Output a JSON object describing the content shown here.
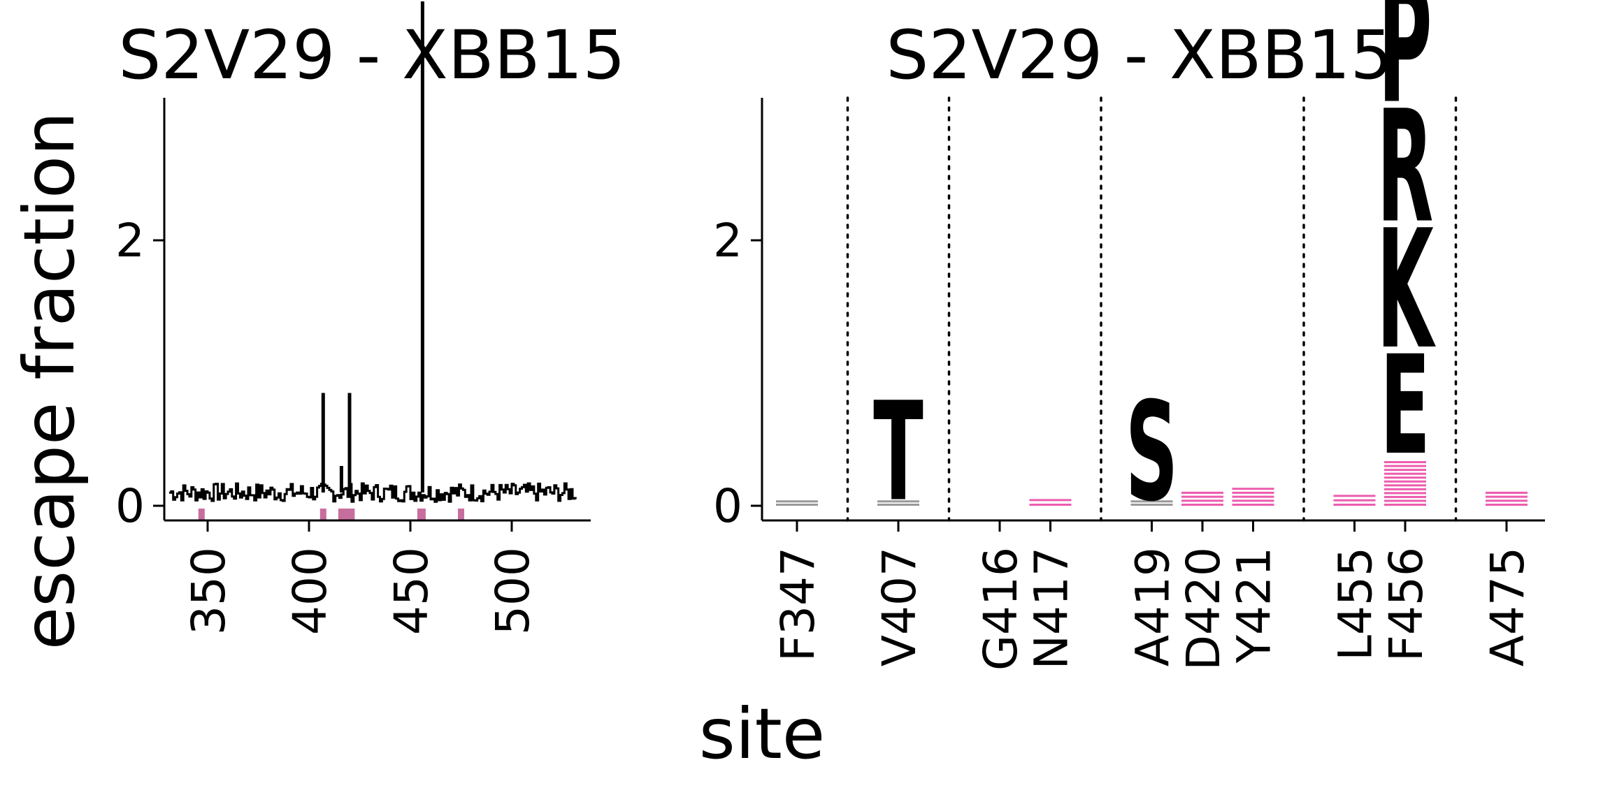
{
  "figure": {
    "ylabel": "escape fraction",
    "xlabel": "site"
  },
  "colors": {
    "axis": "#000000",
    "line": "#000000",
    "site_marker": "#c86e9e",
    "highlight": "#e8339a",
    "gray_letter": "#808080"
  },
  "chart_data": [
    {
      "type": "line",
      "title": "S2V29 - XBB15",
      "ylabel": "escape fraction",
      "xlabel": "",
      "xlim": [
        326,
        536
      ],
      "ylim": [
        -0.2,
        6.2
      ],
      "xticks": [
        350,
        400,
        450,
        500
      ],
      "yticks": [
        0,
        2,
        4,
        6
      ],
      "baseline_range": [
        331,
        531
      ],
      "baseline_level": 0.1,
      "spikes": [
        {
          "site": 407,
          "value": 0.85
        },
        {
          "site": 416,
          "value": 0.3
        },
        {
          "site": 420,
          "value": 0.85
        },
        {
          "site": 456,
          "value": 3.8
        }
      ],
      "highlighted_sites": [
        347,
        407,
        416,
        417,
        419,
        420,
        421,
        455,
        456,
        475
      ]
    },
    {
      "type": "logo",
      "title": "S2V29 - XBB15",
      "ylabel": "",
      "xlabel": "site",
      "ylim": [
        -0.2,
        6.2
      ],
      "yticks": [
        0,
        2,
        4,
        6
      ],
      "sites": [
        "F347",
        "V407",
        "G416",
        "N417",
        "A419",
        "D420",
        "Y421",
        "L455",
        "F456",
        "A475"
      ],
      "groups": [
        [
          0
        ],
        [
          1
        ],
        [
          2,
          3
        ],
        [
          4,
          5,
          6
        ],
        [
          7,
          8
        ],
        [
          9
        ]
      ],
      "letters": [
        {
          "site": "V407",
          "letter": "T",
          "bottom": 0.05,
          "height": 0.75,
          "color": "gray"
        },
        {
          "site": "A419",
          "letter": "S",
          "bottom": 0.05,
          "height": 0.75,
          "color": "gray"
        },
        {
          "site": "F456",
          "letter": "E",
          "bottom": 0.4,
          "height": 0.75,
          "color": "pink"
        },
        {
          "site": "F456",
          "letter": "K",
          "bottom": 1.2,
          "height": 0.9,
          "color": "pink"
        },
        {
          "site": "F456",
          "letter": "R",
          "bottom": 2.15,
          "height": 0.85,
          "color": "pink"
        },
        {
          "site": "F456",
          "letter": "P",
          "bottom": 3.05,
          "height": 0.9,
          "color": "pink"
        }
      ],
      "small_stacks": [
        {
          "site": "F347",
          "height": 0.05,
          "color": "gray"
        },
        {
          "site": "V407",
          "height": 0.05,
          "color": "gray"
        },
        {
          "site": "N417",
          "height": 0.07,
          "color": "pink"
        },
        {
          "site": "A419",
          "height": 0.05,
          "color": "gray"
        },
        {
          "site": "D420",
          "height": 0.12,
          "color": "pink"
        },
        {
          "site": "Y421",
          "height": 0.15,
          "color": "pink"
        },
        {
          "site": "L455",
          "height": 0.1,
          "color": "pink"
        },
        {
          "site": "F456",
          "height": 0.35,
          "color": "pink"
        },
        {
          "site": "A475",
          "height": 0.12,
          "color": "pink"
        }
      ]
    }
  ]
}
